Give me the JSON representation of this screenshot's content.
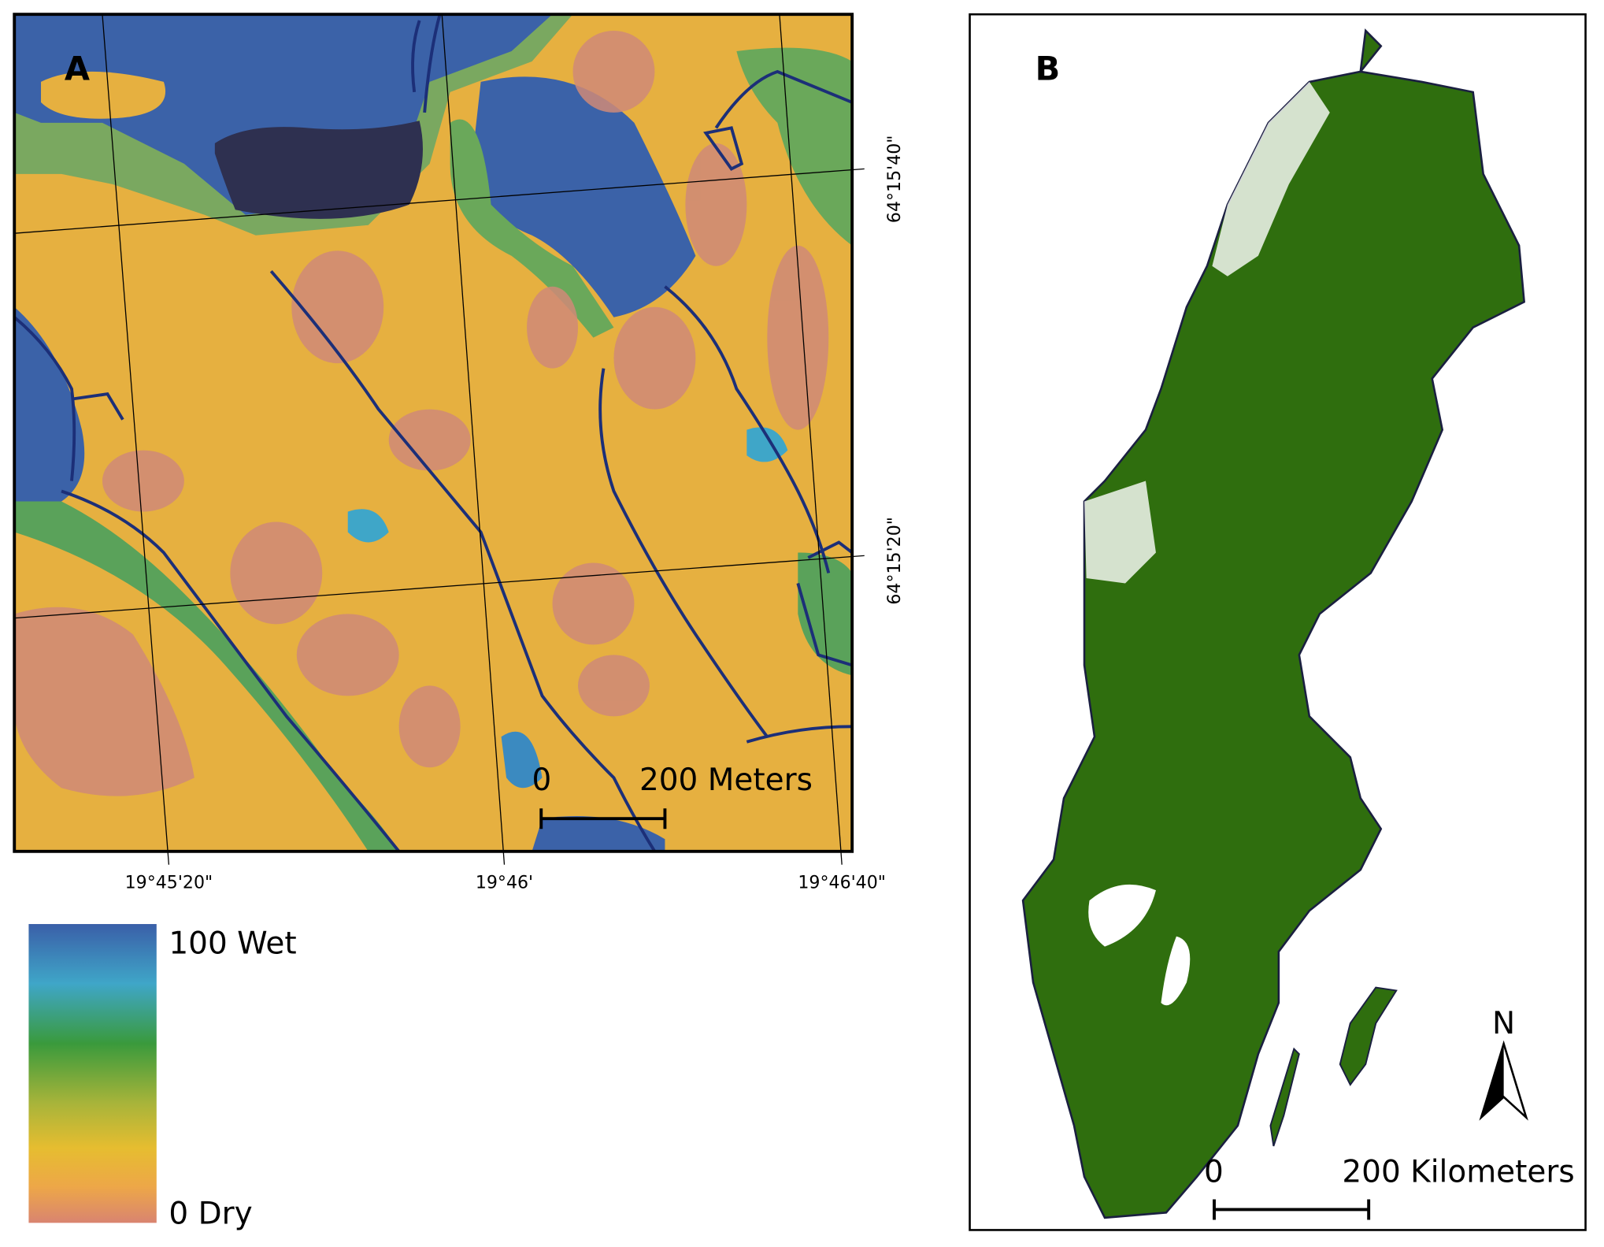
{
  "panel_a": {
    "label": "A",
    "latitude_labels": [
      "64°15'40\"",
      "64°15'20\""
    ],
    "longitude_labels": [
      "19°45'20\"",
      "19°46'",
      "19°46'40\""
    ],
    "scale_bar": {
      "start": "0",
      "end": "200 Meters"
    },
    "legend": {
      "high": "100 Wet",
      "low": "0 Dry"
    }
  },
  "panel_b": {
    "label": "B",
    "scale_bar": {
      "start": "0",
      "end": "200 Kilometers"
    },
    "north": "N"
  }
}
